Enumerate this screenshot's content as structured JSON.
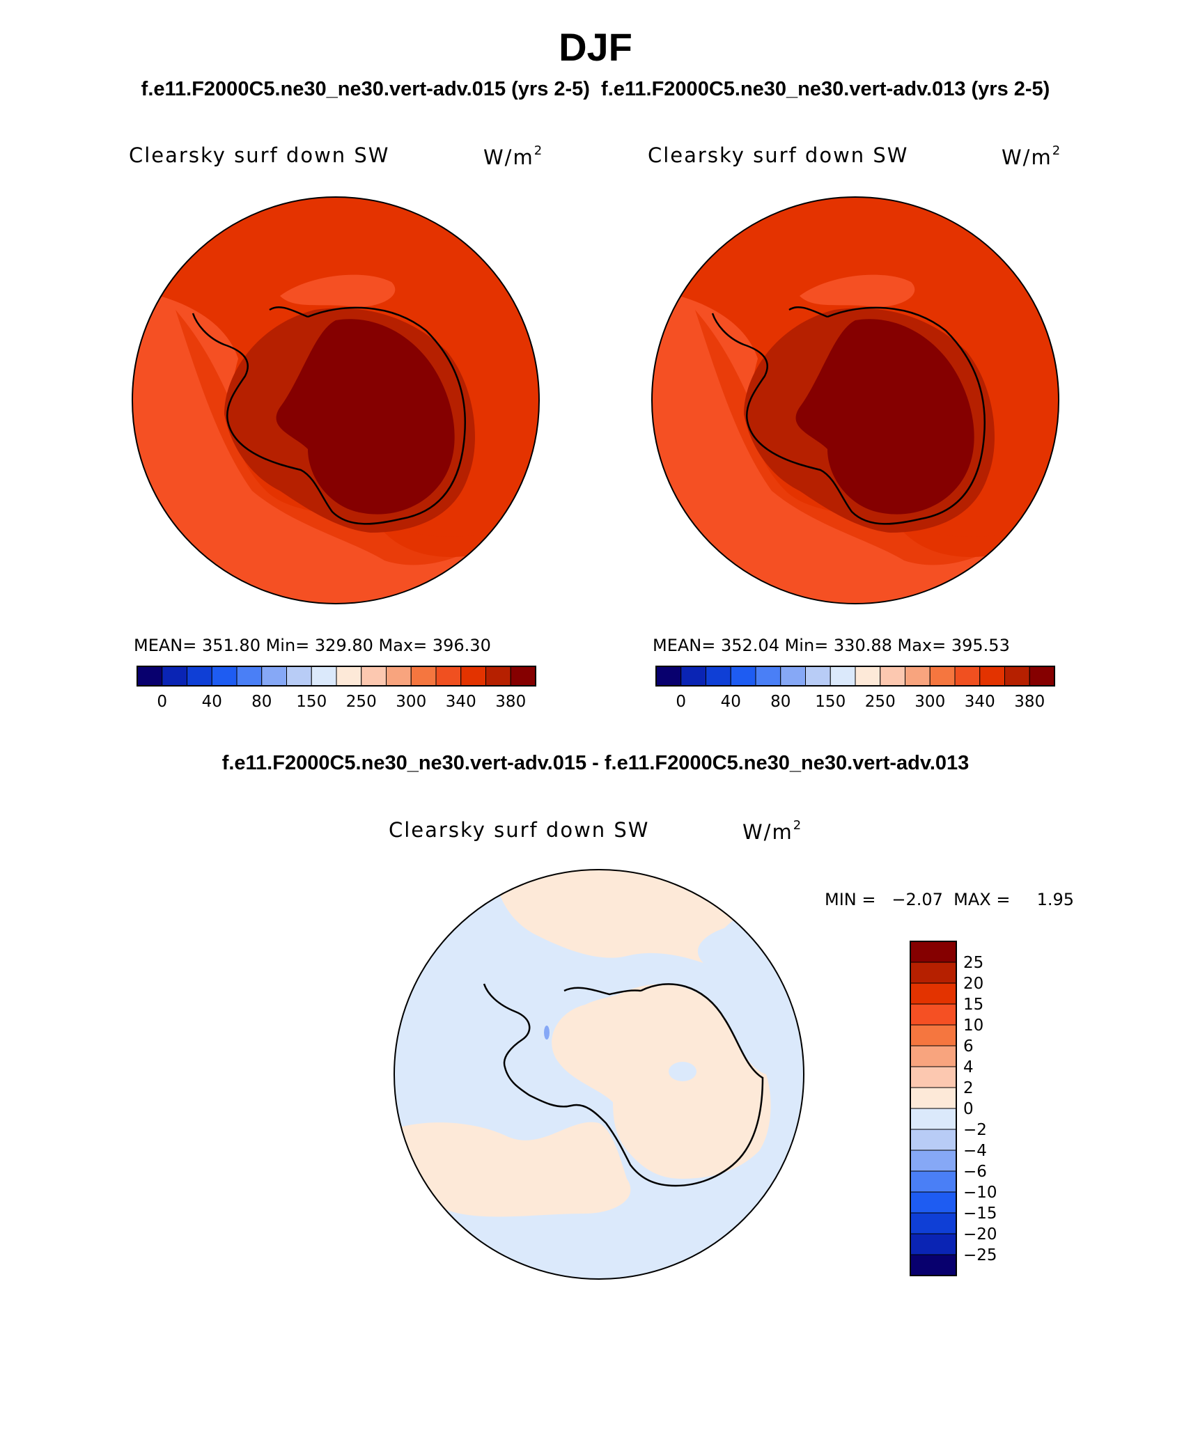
{
  "header": {
    "title": "DJF",
    "case1_title": "f.e11.F2000C5.ne30_ne30.vert-adv.015 (yrs 2-5)",
    "case2_title": "f.e11.F2000C5.ne30_ne30.vert-adv.013 (yrs 2-5)",
    "diff_title": "f.e11.F2000C5.ne30_ne30.vert-adv.015 - f.e11.F2000C5.ne30_ne30.vert-adv.013"
  },
  "panels": [
    {
      "variable": "Clearsky surf down SW",
      "units_base": "W/m",
      "units_exp": "2",
      "stats": "MEAN= 351.80   Min= 329.80   Max= 396.30"
    },
    {
      "variable": "Clearsky surf down SW",
      "units_base": "W/m",
      "units_exp": "2",
      "stats": "MEAN= 352.04   Min= 330.88   Max= 395.53"
    }
  ],
  "diff_panel": {
    "variable": "Clearsky surf down SW",
    "units_base": "W/m",
    "units_exp": "2",
    "minmax": "MIN =   −2.07  MAX =     1.95"
  },
  "colorbar_main": {
    "colors": [
      "#08006e",
      "#0a24b4",
      "#0f3fd6",
      "#1e5cf2",
      "#4a7ff6",
      "#86a8f6",
      "#b8ccf6",
      "#dbe9fb",
      "#fde9d8",
      "#fcc8b0",
      "#f8a47e",
      "#f5763f",
      "#f05020",
      "#e33300",
      "#b62000",
      "#850000"
    ],
    "labels": [
      "0",
      "40",
      "80",
      "150",
      "250",
      "300",
      "340",
      "380"
    ]
  },
  "colorbar_diff": {
    "colors": [
      "#850000",
      "#b62000",
      "#e33300",
      "#f55023",
      "#f5763f",
      "#f8a47e",
      "#fcc8b0",
      "#fde9d8",
      "#dbe9fb",
      "#b8ccf6",
      "#86a8f6",
      "#4a7ff6",
      "#1e5cf2",
      "#0f3fd6",
      "#0a24b4",
      "#08006e"
    ],
    "labels": [
      "25",
      "20",
      "15",
      "10",
      "6",
      "4",
      "2",
      "0",
      "−2",
      "−4",
      "−6",
      "−10",
      "−15",
      "−20",
      "−25"
    ]
  },
  "map_colors": {
    "ocean_main": "#e43300",
    "ocean_light": "#f55023",
    "coast_ring": "#b62000",
    "interior": "#850000",
    "diff_negative": "#dbe9fb",
    "diff_positive": "#fde9d8",
    "diff_blue_spot": "#86a8f6"
  }
}
